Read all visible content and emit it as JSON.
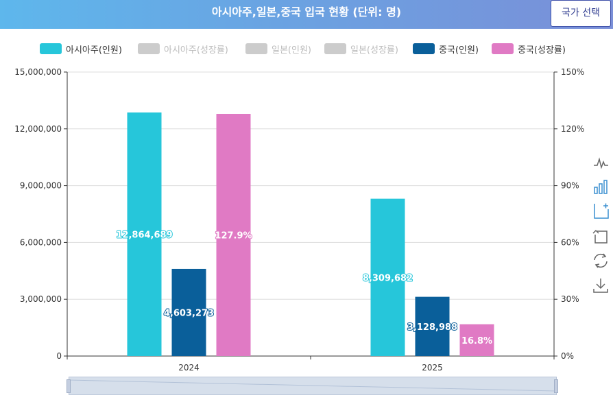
{
  "header": {
    "title": "아시아주,일본,중국 입국 현황 (단위: 명)"
  },
  "country_button": {
    "label": "국가 선택"
  },
  "chart_data": {
    "type": "bar",
    "categories": [
      "2024",
      "2025"
    ],
    "legend": [
      {
        "name": "아시아주(인원)",
        "color": "#26c6da",
        "active": true
      },
      {
        "name": "아시아주(성장률)",
        "color": "#cccccc",
        "active": false
      },
      {
        "name": "일본(인원)",
        "color": "#cccccc",
        "active": false
      },
      {
        "name": "일본(성장률)",
        "color": "#cccccc",
        "active": false
      },
      {
        "name": "중국(인원)",
        "color": "#0a5f9a",
        "active": true
      },
      {
        "name": "중국(성장률)",
        "color": "#e07ac4",
        "active": true
      }
    ],
    "series": [
      {
        "name": "아시아주(인원)",
        "axis": "left",
        "color": "#26c6da",
        "values": [
          12864689,
          8309682
        ],
        "labels": [
          "12,864,689",
          "8,309,682"
        ]
      },
      {
        "name": "중국(인원)",
        "axis": "left",
        "color": "#0a5f9a",
        "values": [
          4603273,
          3128988
        ],
        "labels": [
          "4,603,273",
          "3,128,988"
        ]
      },
      {
        "name": "중국(성장률)",
        "axis": "right",
        "color": "#e07ac4",
        "values": [
          127.9,
          16.8
        ],
        "labels": [
          "127.9%",
          "16.8%"
        ]
      }
    ],
    "y_left": {
      "min": 0,
      "max": 15000000,
      "ticks": [
        "0",
        "3,000,000",
        "6,000,000",
        "9,000,000",
        "12,000,000",
        "15,000,000"
      ]
    },
    "y_right": {
      "min": 0,
      "max": 150,
      "ticks": [
        "0%",
        "30%",
        "60%",
        "90%",
        "120%",
        "150%"
      ]
    }
  },
  "toolbox": [
    {
      "name": "line-chart-icon",
      "color": "#666666"
    },
    {
      "name": "bar-chart-icon",
      "color": "#3a8fd0"
    },
    {
      "name": "stack-icon",
      "color": "#3a8fd0"
    },
    {
      "name": "tiled-icon",
      "color": "#666666"
    },
    {
      "name": "restore-icon",
      "color": "#666666"
    },
    {
      "name": "save-image-icon",
      "color": "#666666"
    }
  ]
}
